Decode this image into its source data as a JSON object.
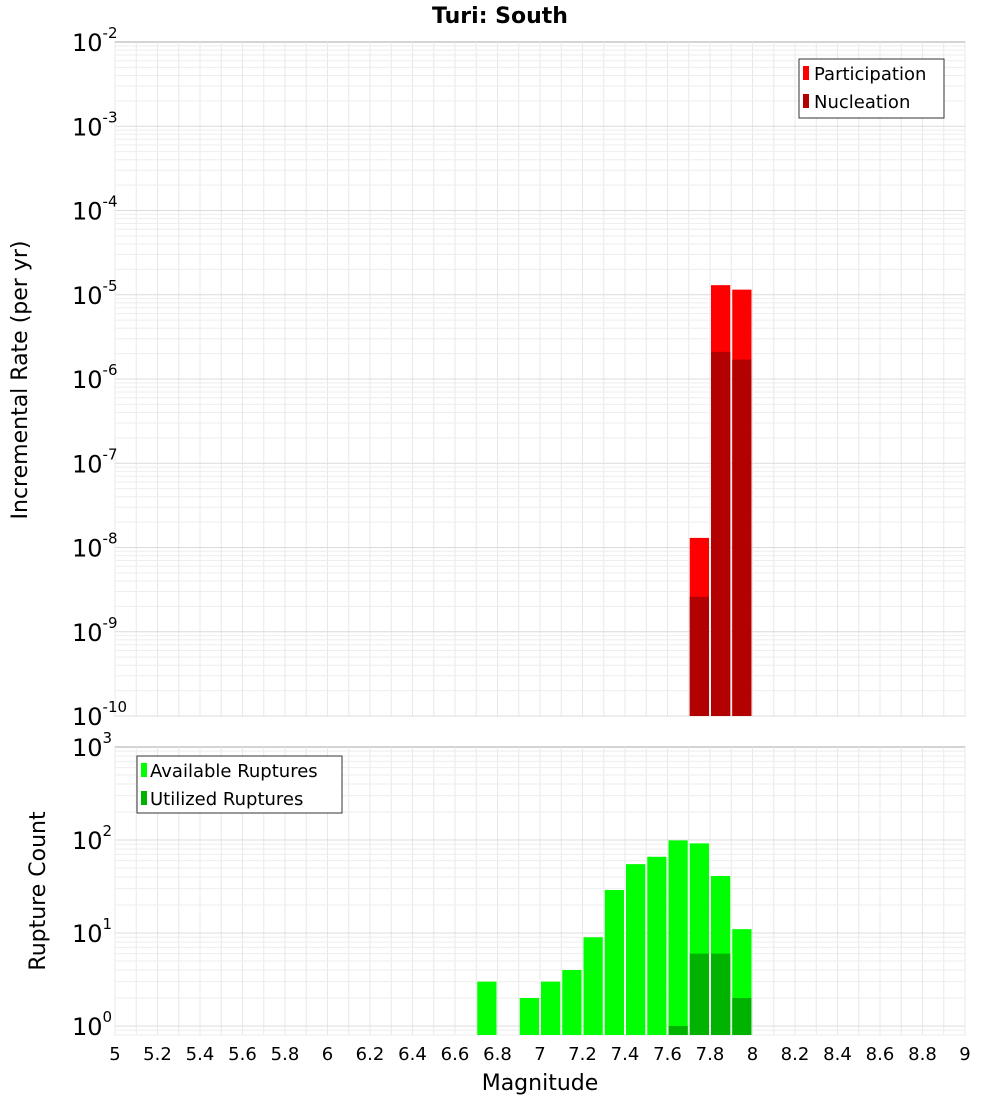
{
  "chart_data": {
    "type": "bar",
    "title": "Turi: South",
    "xlabel": "Magnitude",
    "xlim": [
      5,
      9
    ],
    "x_ticks": [
      "5",
      "5.2",
      "5.4",
      "5.6",
      "5.8",
      "6",
      "6.2",
      "6.4",
      "6.6",
      "6.8",
      "7",
      "7.2",
      "7.4",
      "7.6",
      "7.8",
      "8",
      "8.2",
      "8.4",
      "8.6",
      "8.8",
      "9"
    ],
    "bin_width": 0.1,
    "panels": [
      {
        "ylabel": "Incremental Rate (per yr)",
        "yscale": "log",
        "ylim": [
          1e-10,
          0.01
        ],
        "y_ticks": [
          {
            "base": "10",
            "exp": "-2"
          },
          {
            "base": "10",
            "exp": "-3"
          },
          {
            "base": "10",
            "exp": "-4"
          },
          {
            "base": "10",
            "exp": "-5"
          },
          {
            "base": "10",
            "exp": "-6"
          },
          {
            "base": "10",
            "exp": "-7"
          },
          {
            "base": "10",
            "exp": "-8"
          },
          {
            "base": "10",
            "exp": "-9"
          },
          {
            "base": "10",
            "exp": "-10"
          }
        ],
        "legend_position": "top-right",
        "series": [
          {
            "name": "Participation",
            "color": "#ff0000",
            "points": [
              {
                "x": 7.75,
                "y": 1.3e-08
              },
              {
                "x": 7.85,
                "y": 1.3e-05
              },
              {
                "x": 7.95,
                "y": 1.15e-05
              }
            ]
          },
          {
            "name": "Nucleation",
            "color": "#b30000",
            "points": [
              {
                "x": 7.75,
                "y": 2.6e-09
              },
              {
                "x": 7.85,
                "y": 2.1e-06
              },
              {
                "x": 7.95,
                "y": 1.7e-06
              }
            ]
          }
        ]
      },
      {
        "ylabel": "Rupture Count",
        "yscale": "log",
        "ylim": [
          0.8,
          1000
        ],
        "y_ticks": [
          {
            "base": "10",
            "exp": "3"
          },
          {
            "base": "10",
            "exp": "2"
          },
          {
            "base": "10",
            "exp": "1"
          },
          {
            "base": "10",
            "exp": "0"
          }
        ],
        "legend_position": "top-left",
        "series": [
          {
            "name": "Available Ruptures",
            "color": "#00ff00",
            "points": [
              {
                "x": 6.75,
                "y": 3
              },
              {
                "x": 6.95,
                "y": 2
              },
              {
                "x": 7.05,
                "y": 3
              },
              {
                "x": 7.15,
                "y": 4
              },
              {
                "x": 7.25,
                "y": 9
              },
              {
                "x": 7.35,
                "y": 29
              },
              {
                "x": 7.45,
                "y": 55
              },
              {
                "x": 7.55,
                "y": 66
              },
              {
                "x": 7.65,
                "y": 99
              },
              {
                "x": 7.75,
                "y": 92
              },
              {
                "x": 7.85,
                "y": 41
              },
              {
                "x": 7.95,
                "y": 11
              }
            ]
          },
          {
            "name": "Utilized Ruptures",
            "color": "#00b300",
            "points": [
              {
                "x": 7.65,
                "y": 1
              },
              {
                "x": 7.75,
                "y": 6
              },
              {
                "x": 7.85,
                "y": 6
              },
              {
                "x": 7.95,
                "y": 2
              }
            ]
          }
        ]
      }
    ]
  }
}
